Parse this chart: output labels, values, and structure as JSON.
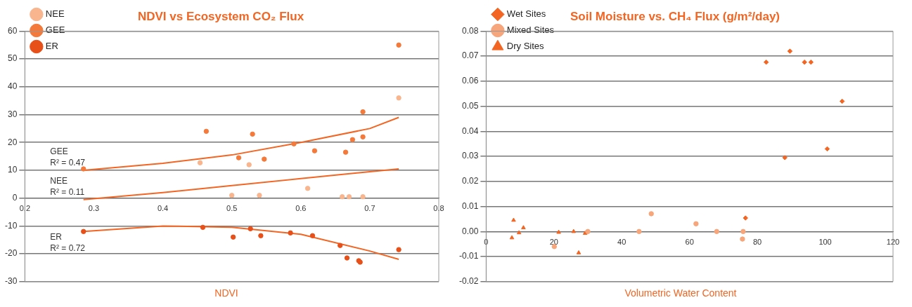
{
  "chart_data": [
    {
      "type": "scatter",
      "title": "NDVI vs Ecosystem CO₂ Flux",
      "xlabel": "NDVI",
      "xlim": [
        0.2,
        0.8
      ],
      "xticks": [
        0.2,
        0.3,
        0.4,
        0.5,
        0.6,
        0.7,
        0.8
      ],
      "ylim": [
        -30,
        60
      ],
      "yticks": [
        -30,
        -20,
        -10,
        0,
        10,
        20,
        30,
        40,
        50,
        60
      ],
      "grid": "y",
      "legend": "top left",
      "marker": "circle",
      "series": [
        {
          "name": "NEE",
          "color": "#f9b58e",
          "x": [
            0.454,
            0.5,
            0.525,
            0.54,
            0.61,
            0.66,
            0.67,
            0.69,
            0.742
          ],
          "values": [
            12.7,
            1,
            12,
            1,
            3.5,
            0.5,
            0.5,
            0.5,
            36
          ]
        },
        {
          "name": "GEE",
          "color": "#f47a3c",
          "x": [
            0.285,
            0.463,
            0.51,
            0.53,
            0.547,
            0.59,
            0.62,
            0.665,
            0.675,
            0.69,
            0.69,
            0.742
          ],
          "values": [
            10.5,
            24,
            14.5,
            23,
            14,
            19.5,
            17,
            16.5,
            21,
            22,
            31,
            55
          ]
        },
        {
          "name": "ER",
          "color": "#e8501a",
          "x": [
            0.285,
            0.458,
            0.502,
            0.527,
            0.542,
            0.585,
            0.617,
            0.657,
            0.667,
            0.684,
            0.686,
            0.742
          ],
          "values": [
            -12,
            -10.5,
            -14,
            -11,
            -13.5,
            -12.5,
            -13.5,
            -17,
            -21.5,
            -22.5,
            -23,
            -18.5
          ]
        },
        {
          "type": "line",
          "color": "#f26522",
          "marker": "none",
          "x": [
            0.285,
            0.4,
            0.5,
            0.6,
            0.7,
            0.742
          ],
          "values": [
            10,
            12.5,
            15.5,
            20,
            25,
            29
          ]
        },
        {
          "type": "line",
          "color": "#f26522",
          "marker": "none",
          "x": [
            0.285,
            0.4,
            0.5,
            0.6,
            0.7,
            0.742
          ],
          "values": [
            -0.5,
            2,
            4.5,
            7,
            9.5,
            10.5
          ]
        },
        {
          "type": "line",
          "color": "#f26522",
          "marker": "none",
          "x": [
            0.285,
            0.4,
            0.5,
            0.6,
            0.7,
            0.742
          ],
          "values": [
            -12,
            -10,
            -10.5,
            -13,
            -19,
            -22
          ]
        }
      ],
      "annotations": [
        "GEE",
        "R² = 0.47",
        "NEE",
        "R² = 0.11",
        "ER",
        "R² = 0.72"
      ]
    },
    {
      "type": "scatter",
      "title": "Soil Moisture vs. CH₄ Flux (g/m²/day)",
      "xlabel": "Volumetric Water Content",
      "xlim": [
        0,
        120
      ],
      "xticks": [
        0,
        20,
        40,
        60,
        80,
        100,
        120
      ],
      "ylim": [
        -0.02,
        0.08
      ],
      "yticks": [
        {
          "value": -0.02,
          "label": "-0.02"
        },
        {
          "value": -0.01,
          "label": "-0.01"
        },
        {
          "value": 0,
          "label": "0.00"
        },
        {
          "value": 0.01,
          "label": "0.01"
        },
        {
          "value": 0.02,
          "label": "0.02"
        },
        {
          "value": 0.03,
          "label": "0.03"
        },
        {
          "value": 0.04,
          "label": "0.04"
        },
        {
          "value": 0.05,
          "label": "0.05"
        },
        {
          "value": 0.06,
          "label": "0.06"
        },
        {
          "value": 0.07,
          "label": "0.07"
        },
        {
          "value": 0.08,
          "label": "0.08"
        }
      ],
      "grid": "y",
      "legend": "top left",
      "series": [
        {
          "name": "Wet Sites",
          "color": "#f26522",
          "marker": "diamond",
          "x": [
            82.6,
            89.6,
            93.9,
            95.8,
            105,
            100.6,
            88.1,
            76.5
          ],
          "values": [
            0.0676,
            0.072,
            0.0676,
            0.0676,
            0.052,
            0.033,
            0.0295,
            0.0054
          ]
        },
        {
          "name": "Mixed Sites",
          "color": "#f7a57a",
          "marker": "circle",
          "x": [
            48.7,
            45.1,
            61.9,
            68,
            75.8,
            75.6,
            20.1,
            30
          ],
          "values": [
            0.0071,
            0,
            0.0031,
            0,
            0,
            -0.003,
            -0.006,
            0
          ]
        },
        {
          "name": "Dry Sites",
          "color": "#f26522",
          "marker": "triangle",
          "x": [
            8.1,
            7.6,
            9.7,
            11,
            21.4,
            25.8,
            29.2,
            27.3
          ],
          "values": [
            0.0045,
            -0.0025,
            -0.0005,
            0.0015,
            -0.0003,
            0,
            -0.0007,
            -0.0085
          ]
        }
      ]
    }
  ]
}
